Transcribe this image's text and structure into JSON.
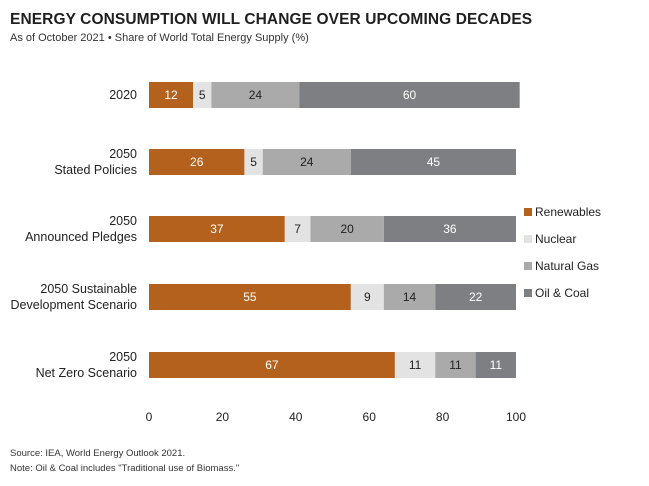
{
  "header": {
    "title": "ENERGY CONSUMPTION WILL CHANGE OVER UPCOMING DECADES",
    "subtitle": "As of October 2021 • Share of World Total Energy Supply (%)"
  },
  "chart_data": {
    "type": "bar",
    "orientation": "horizontal",
    "stacked": true,
    "categories": [
      [
        "2020"
      ],
      [
        "2050",
        "Stated Policies"
      ],
      [
        "2050",
        "Announced Pledges"
      ],
      [
        "2050 Sustainable",
        "Development Scenario"
      ],
      [
        "2050",
        "Net Zero Scenario"
      ]
    ],
    "series": [
      {
        "name": "Renewables",
        "color": "#B5611E",
        "label_color": "#ffffff",
        "values": [
          12,
          26,
          37,
          55,
          67
        ]
      },
      {
        "name": "Nuclear",
        "color": "#E3E3E3",
        "label_color": "#222222",
        "values": [
          5,
          5,
          7,
          9,
          11
        ]
      },
      {
        "name": "Natural Gas",
        "color": "#AAAAAA",
        "label_color": "#222222",
        "values": [
          24,
          24,
          20,
          14,
          11
        ]
      },
      {
        "name": "Oil & Coal",
        "color": "#7D7F82",
        "label_color": "#ffffff",
        "values": [
          60,
          45,
          36,
          22,
          11
        ]
      }
    ],
    "xlim": [
      0,
      100
    ],
    "xticks": [
      "0",
      "20",
      "40",
      "60",
      "80",
      "100"
    ],
    "xtick_values": [
      0,
      20,
      40,
      60,
      80,
      100
    ],
    "grid": false,
    "legend_position": "right"
  },
  "footnotes": {
    "source": "Source: IEA, World Energy Outlook 2021.",
    "note": "Note: Oil & Coal includes \"Traditional use of Biomass.\""
  }
}
